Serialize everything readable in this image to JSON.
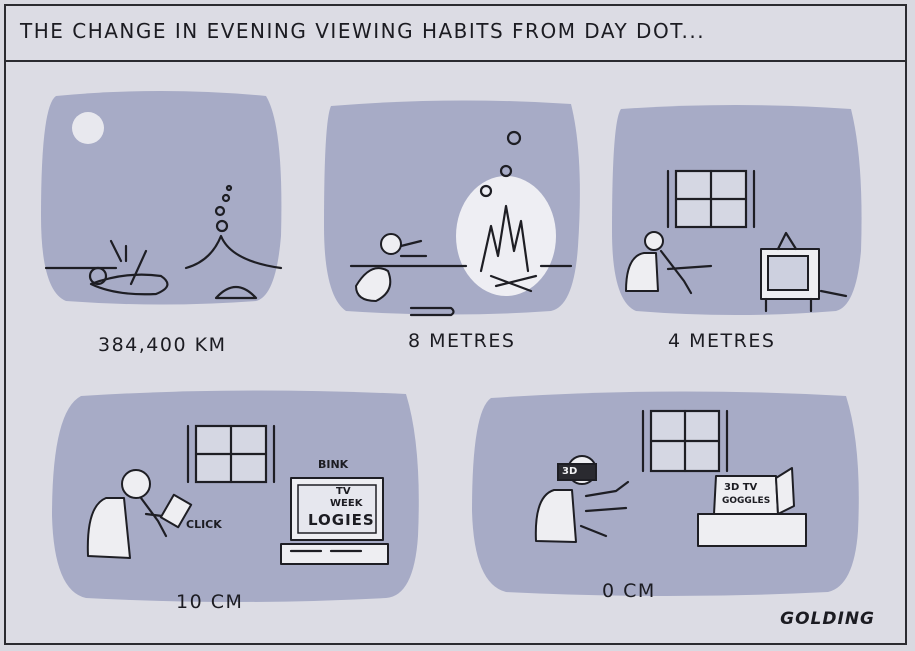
{
  "title": "THE CHANGE IN EVENING VIEWING HABITS FROM DAY DOT...",
  "panels": [
    {
      "caption": "384,400 KM"
    },
    {
      "caption": "8 METRES"
    },
    {
      "caption": "4 METRES"
    },
    {
      "caption": "10 CM",
      "tv_screen_text": [
        "TV",
        "WEEK",
        "LOGIES"
      ],
      "sound_fx": [
        "BINK",
        "CLICK"
      ]
    },
    {
      "caption": "0 CM",
      "goggles_label": "3D",
      "box_text": [
        "3D TV",
        "GOGGLES"
      ]
    }
  ],
  "signature": "GOLDING"
}
